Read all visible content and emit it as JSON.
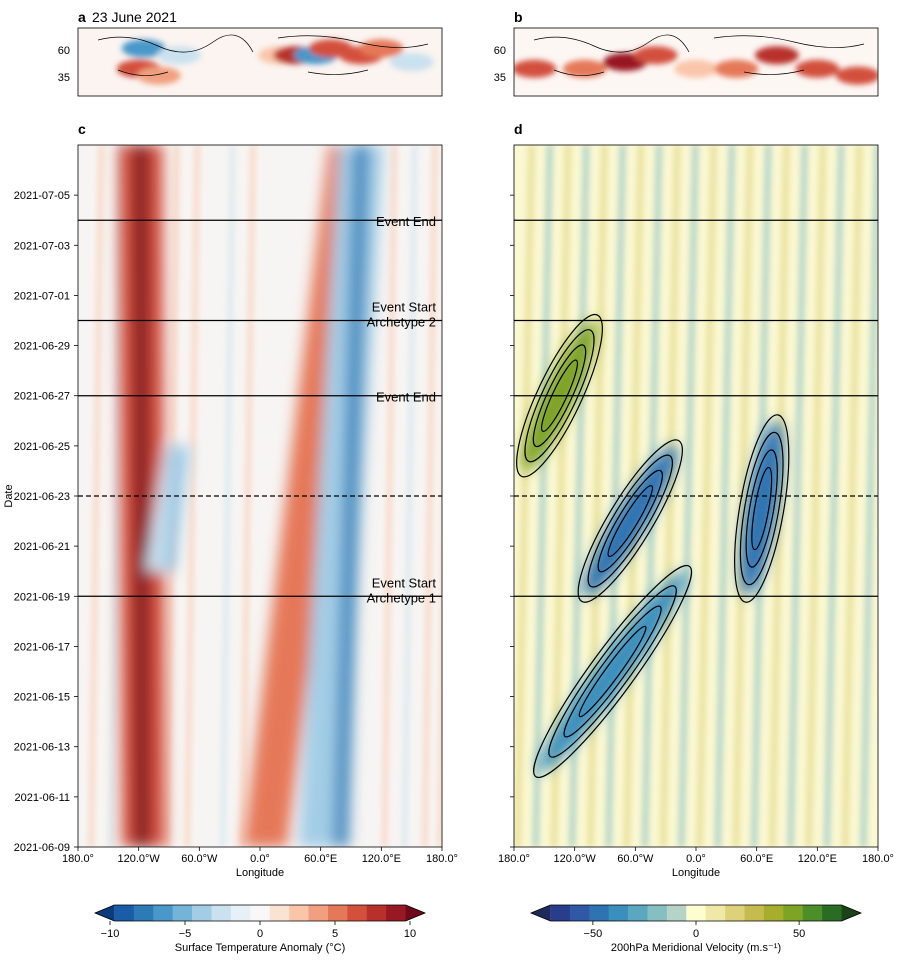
{
  "chart_data": [
    {
      "panel_label": "a",
      "type": "heatmap",
      "title": "23 June 2021",
      "description_map": "surface temperature anomaly over northern hemisphere",
      "yticks": [
        "60",
        "35"
      ],
      "ylim": [
        25,
        75
      ],
      "colormap": "diverging blue-white-red",
      "features": [
        {
          "lon": -115,
          "lat": 60,
          "value": -6
        },
        {
          "lon": -120,
          "lat": 45,
          "value": 6
        },
        {
          "lon": -100,
          "lat": 40,
          "value": 4
        },
        {
          "lon": -80,
          "lat": 55,
          "value": -3
        },
        {
          "lon": 20,
          "lat": 55,
          "value": 3
        },
        {
          "lon": 35,
          "lat": 55,
          "value": 8
        },
        {
          "lon": 55,
          "lat": 55,
          "value": -6
        },
        {
          "lon": 70,
          "lat": 60,
          "value": 6
        },
        {
          "lon": 100,
          "lat": 55,
          "value": 7
        },
        {
          "lon": 120,
          "lat": 60,
          "value": 5
        },
        {
          "lon": 150,
          "lat": 50,
          "value": -3
        }
      ]
    },
    {
      "panel_label": "b",
      "type": "heatmap",
      "title": "",
      "yticks": [
        "60",
        "35"
      ],
      "ylim": [
        25,
        75
      ],
      "colormap": "white-red",
      "features": [
        {
          "lon": -160,
          "lat": 45,
          "value": 6
        },
        {
          "lon": -110,
          "lat": 45,
          "value": 5
        },
        {
          "lon": -70,
          "lat": 50,
          "value": 9
        },
        {
          "lon": -40,
          "lat": 55,
          "value": 6
        },
        {
          "lon": 0,
          "lat": 45,
          "value": 3
        },
        {
          "lon": 40,
          "lat": 45,
          "value": 5
        },
        {
          "lon": 80,
          "lat": 55,
          "value": 8
        },
        {
          "lon": 120,
          "lat": 45,
          "value": 7
        },
        {
          "lon": 160,
          "lat": 40,
          "value": 6
        }
      ]
    },
    {
      "panel_label": "c",
      "type": "heatmap",
      "xlabel": "Longitude",
      "ylabel": "Date",
      "xlim": [
        -180,
        180
      ],
      "xticks": [
        {
          "value": -180,
          "label": "180.0°"
        },
        {
          "value": -120,
          "label": "120.0°W"
        },
        {
          "value": -60,
          "label": "60.0°W"
        },
        {
          "value": 0,
          "label": "0.0°"
        },
        {
          "value": 60,
          "label": "60.0°E"
        },
        {
          "value": 120,
          "label": "120.0°E"
        },
        {
          "value": 180,
          "label": "180.0°"
        }
      ],
      "yticks": [
        "2021-07-05",
        "2021-07-03",
        "2021-07-01",
        "2021-06-29",
        "2021-06-27",
        "2021-06-25",
        "2021-06-23",
        "2021-06-21",
        "2021-06-19",
        "2021-06-17",
        "2021-06-15",
        "2021-06-13",
        "2021-06-11",
        "2021-06-09"
      ],
      "ylim": [
        "2021-06-09",
        "2021-07-07"
      ],
      "hlines": [
        {
          "date": "2021-07-04",
          "style": "solid",
          "label": [
            "Event End"
          ]
        },
        {
          "date": "2021-06-30",
          "style": "solid",
          "label": [
            "Event Start",
            "Archetype  2"
          ]
        },
        {
          "date": "2021-06-27",
          "style": "solid",
          "label": [
            "Event End"
          ]
        },
        {
          "date": "2021-06-23",
          "style": "dashed",
          "label": []
        },
        {
          "date": "2021-06-19",
          "style": "solid",
          "label": [
            "Event Start",
            "Archetype  1"
          ]
        }
      ],
      "features": [
        {
          "name": "warm anomaly band",
          "lon_start": -115,
          "date_start": "2021-06-09",
          "lon_end": -118,
          "date_end": "2021-07-07",
          "peak": 11
        },
        {
          "name": "warm anomaly band",
          "lon_start": 5,
          "date_start": "2021-06-09",
          "lon_end": 90,
          "date_end": "2021-07-07",
          "peak": 9
        },
        {
          "name": "cold anomaly band",
          "lon_start": 60,
          "date_start": "2021-06-09",
          "lon_end": 100,
          "date_end": "2021-07-07",
          "peak": -8
        },
        {
          "name": "cold anomaly",
          "lon_start": -100,
          "date_start": "2021-06-20",
          "lon_end": -80,
          "date_end": "2021-06-25",
          "peak": -5
        }
      ],
      "colorbar": {
        "label": "Surface Temperature Anomaly (°C)",
        "ticks": [
          "−10",
          "−5",
          "0",
          "5",
          "10"
        ],
        "range": [
          -11,
          11
        ],
        "colors": [
          "#0b3a7d",
          "#1a5ca8",
          "#2c7bb6",
          "#4a98c9",
          "#75b4d9",
          "#a3cde6",
          "#cae1ef",
          "#e6f0f7",
          "#f8f8f8",
          "#fbe3d4",
          "#f9c6aa",
          "#f1a07f",
          "#e57858",
          "#d3503d",
          "#b8302c",
          "#981824",
          "#6f0a1c"
        ]
      }
    },
    {
      "panel_label": "d",
      "type": "heatmap",
      "xlabel": "Longitude",
      "xlim": [
        -180,
        180
      ],
      "xticks": [
        {
          "value": -180,
          "label": "180.0°"
        },
        {
          "value": -120,
          "label": "120.0°W"
        },
        {
          "value": -60,
          "label": "60.0°W"
        },
        {
          "value": 0,
          "label": "0.0°"
        },
        {
          "value": 60,
          "label": "60.0°E"
        },
        {
          "value": 120,
          "label": "120.0°E"
        },
        {
          "value": 180,
          "label": "180.0°"
        }
      ],
      "ylim": [
        "2021-06-09",
        "2021-07-07"
      ],
      "contours": "black contour lines of meridional velocity envelope",
      "features": [
        {
          "name": "wave packet",
          "lon_start": -155,
          "date_start": "2021-06-12",
          "lon_end": -10,
          "date_end": "2021-06-20",
          "peak": -40
        },
        {
          "name": "wave packet",
          "lon_start": -110,
          "date_start": "2021-06-19",
          "lon_end": -20,
          "date_end": "2021-06-25",
          "peak": -50
        },
        {
          "name": "wave packet",
          "lon_start": -170,
          "date_start": "2021-06-24",
          "lon_end": -100,
          "date_end": "2021-06-30",
          "peak": 50
        },
        {
          "name": "wave packet",
          "lon_start": 50,
          "date_start": "2021-06-19",
          "lon_end": 80,
          "date_end": "2021-06-26",
          "peak": -45
        }
      ],
      "colorbar": {
        "label": "200hPa Meridional Velocity (m.s⁻¹)",
        "ticks": [
          "−50",
          "0",
          "50"
        ],
        "range": [
          -80,
          80
        ],
        "colors": [
          "#1e2a5a",
          "#283d8c",
          "#2f58a6",
          "#2f73b3",
          "#3a8fbd",
          "#5aa7bf",
          "#86bfc2",
          "#b5d3c6",
          "#fdfdd0",
          "#f0e8a6",
          "#ddd17a",
          "#c6bb4e",
          "#a7ad2c",
          "#7ea325",
          "#4c8f28",
          "#2b6c24",
          "#1a4418"
        ]
      }
    }
  ]
}
